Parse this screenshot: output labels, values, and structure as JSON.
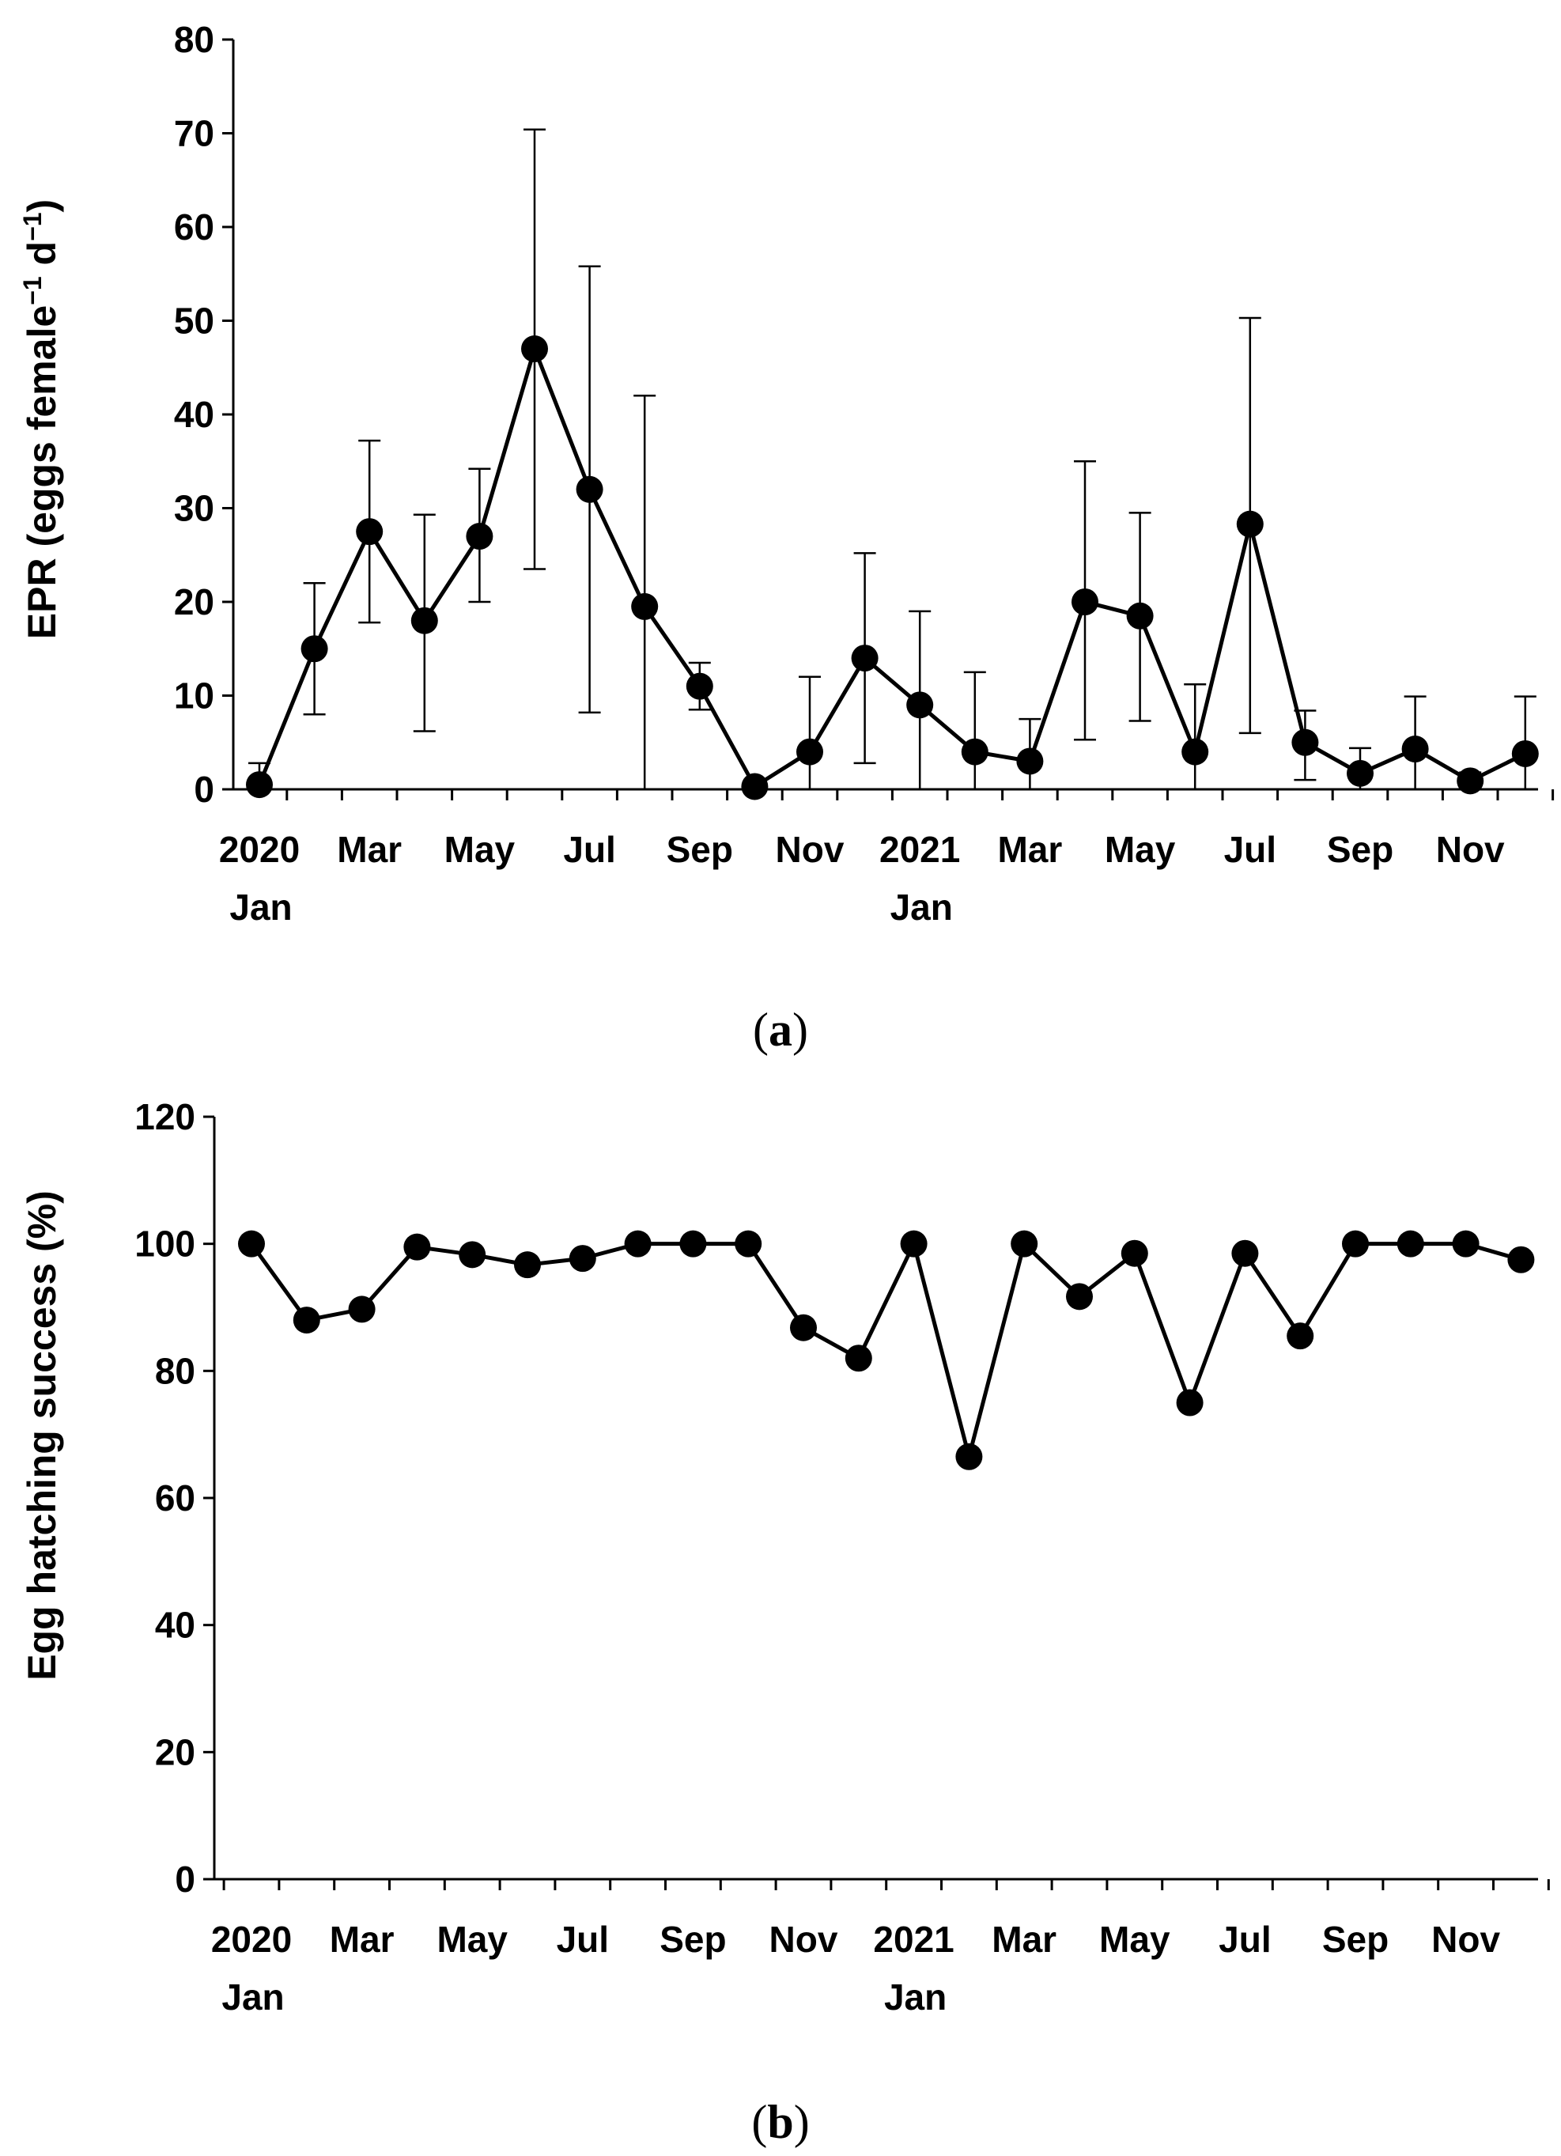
{
  "colors": {
    "ink": "#000000",
    "background": "#ffffff"
  },
  "chart_data": [
    {
      "type": "line",
      "panel_label": "a",
      "title": "",
      "xlabel": "",
      "ylabel": "EPR (eggs female",
      "ylabel_sup1": "−1",
      "ylabel_mid": " d",
      "ylabel_sup2": "−1",
      "ylabel_end": ")",
      "ylim": [
        0,
        80
      ],
      "yticks": [
        0,
        10,
        20,
        30,
        40,
        50,
        60,
        70,
        80
      ],
      "x_tick_labels": [
        {
          "index": 0,
          "lines": [
            "2020",
            "Jan"
          ]
        },
        {
          "index": 2,
          "lines": [
            "Mar"
          ]
        },
        {
          "index": 4,
          "lines": [
            "May"
          ]
        },
        {
          "index": 6,
          "lines": [
            "Jul"
          ]
        },
        {
          "index": 8,
          "lines": [
            "Sep"
          ]
        },
        {
          "index": 10,
          "lines": [
            "Nov"
          ]
        },
        {
          "index": 12,
          "lines": [
            "2021",
            "Jan"
          ]
        },
        {
          "index": 14,
          "lines": [
            "Mar"
          ]
        },
        {
          "index": 16,
          "lines": [
            "May"
          ]
        },
        {
          "index": 18,
          "lines": [
            "Jul"
          ]
        },
        {
          "index": 20,
          "lines": [
            "Sep"
          ]
        },
        {
          "index": 22,
          "lines": [
            "Nov"
          ]
        }
      ],
      "values": [
        0.5,
        15,
        27.5,
        18,
        27,
        47,
        32,
        19.5,
        11,
        0.3,
        4,
        14,
        9,
        4,
        3,
        20,
        18.5,
        4,
        28.3,
        5,
        1.7,
        4.3,
        0.9,
        3.8
      ],
      "error_upper": [
        2.8,
        22,
        37.2,
        29.3,
        34.2,
        70.4,
        55.8,
        42,
        13.5,
        null,
        12,
        25.2,
        19,
        12.5,
        7.5,
        35,
        29.5,
        11.2,
        50.3,
        8.4,
        4.4,
        9.9,
        1.8,
        9.9
      ],
      "error_lower": [
        null,
        8,
        17.8,
        6.2,
        20,
        23.5,
        8.2,
        0,
        8.5,
        null,
        0,
        2.8,
        0,
        0,
        0,
        5.3,
        7.3,
        0,
        6,
        1,
        0,
        0,
        0,
        0
      ]
    },
    {
      "type": "line",
      "panel_label": "b",
      "title": "",
      "xlabel": "",
      "ylabel": "Egg hatching success (%)",
      "ylim": [
        0,
        120
      ],
      "yticks": [
        0,
        20,
        40,
        60,
        80,
        100,
        120
      ],
      "x_tick_labels": [
        {
          "index": 0,
          "lines": [
            "2020",
            "Jan"
          ]
        },
        {
          "index": 2,
          "lines": [
            "Mar"
          ]
        },
        {
          "index": 4,
          "lines": [
            "May"
          ]
        },
        {
          "index": 6,
          "lines": [
            "Jul"
          ]
        },
        {
          "index": 8,
          "lines": [
            "Sep"
          ]
        },
        {
          "index": 10,
          "lines": [
            "Nov"
          ]
        },
        {
          "index": 12,
          "lines": [
            "2021",
            "Jan"
          ]
        },
        {
          "index": 14,
          "lines": [
            "Mar"
          ]
        },
        {
          "index": 16,
          "lines": [
            "May"
          ]
        },
        {
          "index": 18,
          "lines": [
            "Jul"
          ]
        },
        {
          "index": 20,
          "lines": [
            "Sep"
          ]
        },
        {
          "index": 22,
          "lines": [
            "Nov"
          ]
        }
      ],
      "values": [
        100,
        88,
        89.7,
        99.5,
        98.3,
        96.7,
        97.7,
        100,
        100,
        100,
        86.8,
        82,
        100,
        66.5,
        100,
        91.7,
        98.5,
        75,
        98.5,
        85.5,
        100,
        100,
        100,
        97.5
      ]
    }
  ]
}
